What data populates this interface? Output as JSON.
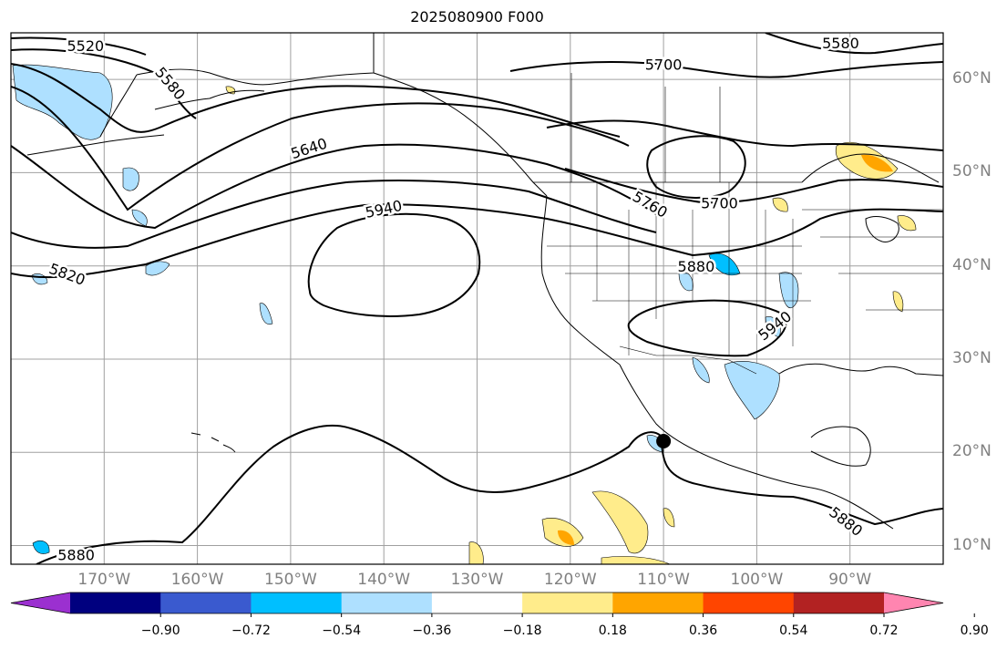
{
  "title": "2025080900 F000",
  "map": {
    "lat_labels": [
      {
        "text": "60°N",
        "lat": 60
      },
      {
        "text": "50°N",
        "lat": 50
      },
      {
        "text": "40°N",
        "lat": 40
      },
      {
        "text": "30°N",
        "lat": 30
      },
      {
        "text": "20°N",
        "lat": 20
      },
      {
        "text": "10°N",
        "lat": 10
      }
    ],
    "lon_labels": [
      {
        "text": "170°W",
        "lon": -170
      },
      {
        "text": "160°W",
        "lon": -160
      },
      {
        "text": "150°W",
        "lon": -150
      },
      {
        "text": "140°W",
        "lon": -140
      },
      {
        "text": "130°W",
        "lon": -130
      },
      {
        "text": "120°W",
        "lon": -120
      },
      {
        "text": "110°W",
        "lon": -110
      },
      {
        "text": "100°W",
        "lon": -100
      },
      {
        "text": "90°W",
        "lon": -90
      }
    ],
    "extent": {
      "lon_min": -180,
      "lon_max": -80,
      "lat_min": 8,
      "lat_max": 65
    },
    "contour_labels": [
      {
        "text": "5520",
        "lon": -172,
        "lat": 63.5,
        "rot": 0
      },
      {
        "text": "5580",
        "lon": -163,
        "lat": 59.5,
        "rot": 50
      },
      {
        "text": "5640",
        "lon": -148,
        "lat": 52.5,
        "rot": -18
      },
      {
        "text": "5700",
        "lon": -110,
        "lat": 61.5,
        "rot": 0
      },
      {
        "text": "5580",
        "lon": -91,
        "lat": 63.8,
        "rot": 0
      },
      {
        "text": "5760",
        "lon": -111.5,
        "lat": 46.5,
        "rot": 30
      },
      {
        "text": "5700",
        "lon": -104,
        "lat": 46.6,
        "rot": 0
      },
      {
        "text": "5940",
        "lon": -140,
        "lat": 46,
        "rot": -12
      },
      {
        "text": "5820",
        "lon": -174,
        "lat": 39,
        "rot": 20
      },
      {
        "text": "5880",
        "lon": -106.5,
        "lat": 39.8,
        "rot": 0
      },
      {
        "text": "5940",
        "lon": -98,
        "lat": 33.5,
        "rot": -38
      },
      {
        "text": "5880",
        "lon": -90.5,
        "lat": 12.5,
        "rot": 38
      },
      {
        "text": "5880",
        "lon": -173,
        "lat": 8.9,
        "rot": 0
      }
    ],
    "marker": {
      "lon": -110,
      "lat": 21.2
    }
  },
  "colorbar": {
    "colors": [
      "#9b30d0",
      "#00007f",
      "#3a5acf",
      "#00bfff",
      "#aee0ff",
      "#ffffff",
      "#ffec8b",
      "#ffa500",
      "#ff4500",
      "#b22222",
      "#ff85b0"
    ],
    "tick_labels": [
      "−0.90",
      "−0.72",
      "−0.54",
      "−0.36",
      "−0.18",
      "0.18",
      "0.36",
      "0.54",
      "0.72",
      "0.90"
    ]
  },
  "legend_colors": {
    "grid": "#a0a0a0",
    "contour": "#000000"
  }
}
